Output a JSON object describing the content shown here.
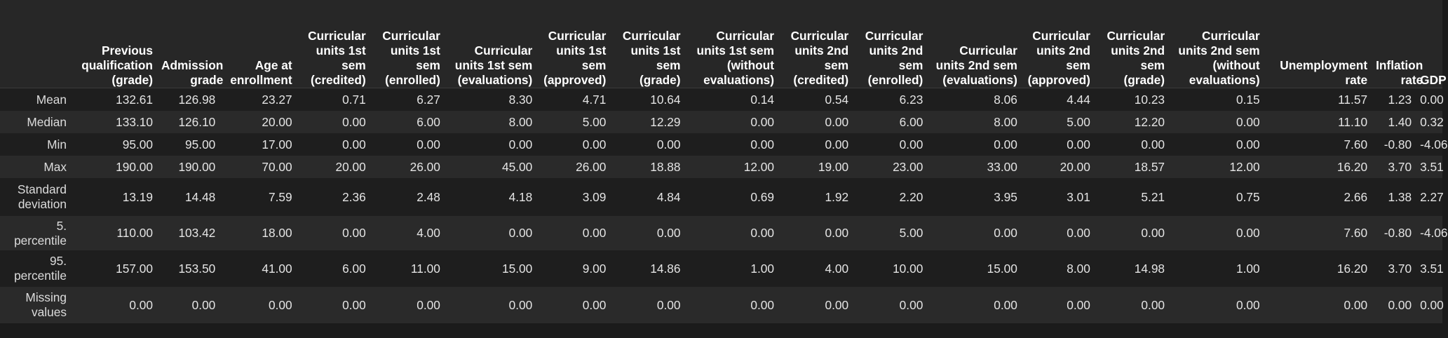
{
  "table": {
    "columns": [
      "Previous qualification (grade)",
      "Admission grade",
      "Age at enrollment",
      "Curricular units 1st sem (credited)",
      "Curricular units 1st sem (enrolled)",
      "Curricular units 1st sem (evaluations)",
      "Curricular units 1st sem (approved)",
      "Curricular units 1st sem (grade)",
      "Curricular units 1st sem (without evaluations)",
      "Curricular units 2nd sem (credited)",
      "Curricular units 2nd sem (enrolled)",
      "Curricular units 2nd sem (evaluations)",
      "Curricular units 2nd sem (approved)",
      "Curricular units 2nd sem (grade)",
      "Curricular units 2nd sem (without evaluations)",
      "Unemployment rate",
      "Inflation rate",
      "GDP"
    ],
    "rows": [
      {
        "label": "Mean",
        "values": [
          "132.61",
          "126.98",
          "23.27",
          "0.71",
          "6.27",
          "8.30",
          "4.71",
          "10.64",
          "0.14",
          "0.54",
          "6.23",
          "8.06",
          "4.44",
          "10.23",
          "0.15",
          "11.57",
          "1.23",
          "0.00"
        ]
      },
      {
        "label": "Median",
        "values": [
          "133.10",
          "126.10",
          "20.00",
          "0.00",
          "6.00",
          "8.00",
          "5.00",
          "12.29",
          "0.00",
          "0.00",
          "6.00",
          "8.00",
          "5.00",
          "12.20",
          "0.00",
          "11.10",
          "1.40",
          "0.32"
        ]
      },
      {
        "label": "Min",
        "values": [
          "95.00",
          "95.00",
          "17.00",
          "0.00",
          "0.00",
          "0.00",
          "0.00",
          "0.00",
          "0.00",
          "0.00",
          "0.00",
          "0.00",
          "0.00",
          "0.00",
          "0.00",
          "7.60",
          "-0.80",
          "-4.06"
        ]
      },
      {
        "label": "Max",
        "values": [
          "190.00",
          "190.00",
          "70.00",
          "20.00",
          "26.00",
          "45.00",
          "26.00",
          "18.88",
          "12.00",
          "19.00",
          "23.00",
          "33.00",
          "20.00",
          "18.57",
          "12.00",
          "16.20",
          "3.70",
          "3.51"
        ]
      },
      {
        "label": "Standard deviation",
        "values": [
          "13.19",
          "14.48",
          "7.59",
          "2.36",
          "2.48",
          "4.18",
          "3.09",
          "4.84",
          "0.69",
          "1.92",
          "2.20",
          "3.95",
          "3.01",
          "5.21",
          "0.75",
          "2.66",
          "1.38",
          "2.27"
        ]
      },
      {
        "label": "5. percentile",
        "values": [
          "110.00",
          "103.42",
          "18.00",
          "0.00",
          "4.00",
          "0.00",
          "0.00",
          "0.00",
          "0.00",
          "0.00",
          "5.00",
          "0.00",
          "0.00",
          "0.00",
          "0.00",
          "7.60",
          "-0.80",
          "-4.06"
        ]
      },
      {
        "label": "95. percentile",
        "values": [
          "157.00",
          "153.50",
          "41.00",
          "6.00",
          "11.00",
          "15.00",
          "9.00",
          "14.86",
          "1.00",
          "4.00",
          "10.00",
          "15.00",
          "8.00",
          "14.98",
          "1.00",
          "16.20",
          "3.70",
          "3.51"
        ]
      },
      {
        "label": "Missing values",
        "values": [
          "0.00",
          "0.00",
          "0.00",
          "0.00",
          "0.00",
          "0.00",
          "0.00",
          "0.00",
          "0.00",
          "0.00",
          "0.00",
          "0.00",
          "0.00",
          "0.00",
          "0.00",
          "0.00",
          "0.00",
          "0.00"
        ]
      }
    ]
  }
}
